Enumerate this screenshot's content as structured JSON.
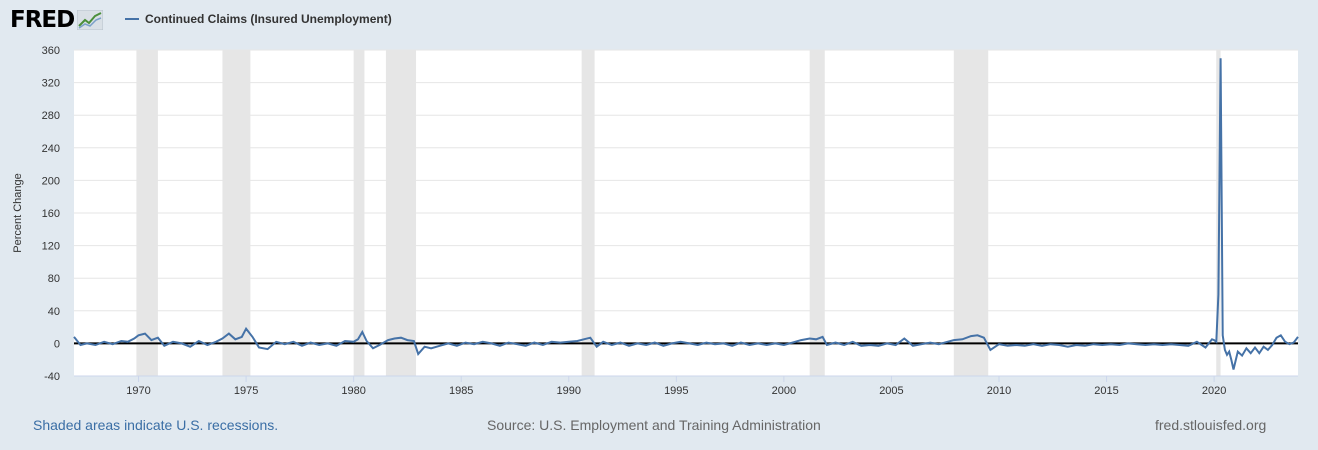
{
  "header": {
    "logo_text": "FRED",
    "logo_icon": "chart-line-icon",
    "legend_label": "Continued Claims (Insured Unemployment)"
  },
  "footer": {
    "recession_note": "Shaded areas indicate U.S. recessions.",
    "source": "Source: U.S. Employment and Training Administration",
    "site": "fred.stlouisfed.org"
  },
  "colors": {
    "series": "#4572a7",
    "recession": "#e6e6e6",
    "zero_line": "#000000",
    "background": "#e1e9f0"
  },
  "chart_data": {
    "type": "line",
    "ylabel": "Percent Change",
    "ylim": [
      -40,
      360
    ],
    "y_ticks": [
      "-40",
      "0",
      "40",
      "80",
      "120",
      "160",
      "200",
      "240",
      "280",
      "320",
      "360"
    ],
    "x_range": [
      1967.0,
      2023.9
    ],
    "x_ticks": [
      "1970",
      "1975",
      "1980",
      "1985",
      "1990",
      "1995",
      "2000",
      "2005",
      "2010",
      "2015",
      "2020"
    ],
    "grid": true,
    "legend_position": "top-left",
    "recessions": [
      [
        1969.9,
        1970.9
      ],
      [
        1973.9,
        1975.2
      ],
      [
        1980.0,
        1980.5
      ],
      [
        1981.5,
        1982.9
      ],
      [
        1990.6,
        1991.2
      ],
      [
        2001.2,
        2001.9
      ],
      [
        2007.9,
        2009.5
      ],
      [
        2020.1,
        2020.3
      ]
    ],
    "series": [
      {
        "values": [
          [
            1967.0,
            8
          ],
          [
            1967.3,
            -2
          ],
          [
            1967.6,
            0
          ],
          [
            1968.0,
            -2
          ],
          [
            1968.4,
            2
          ],
          [
            1968.8,
            -1
          ],
          [
            1969.2,
            3
          ],
          [
            1969.5,
            2
          ],
          [
            1969.8,
            6
          ],
          [
            1970.0,
            10
          ],
          [
            1970.3,
            12
          ],
          [
            1970.6,
            4
          ],
          [
            1970.9,
            7
          ],
          [
            1971.2,
            -3
          ],
          [
            1971.6,
            2
          ],
          [
            1972.0,
            0
          ],
          [
            1972.4,
            -4
          ],
          [
            1972.8,
            3
          ],
          [
            1973.2,
            -2
          ],
          [
            1973.6,
            2
          ],
          [
            1973.9,
            6
          ],
          [
            1974.2,
            12
          ],
          [
            1974.5,
            5
          ],
          [
            1974.8,
            8
          ],
          [
            1975.0,
            18
          ],
          [
            1975.3,
            8
          ],
          [
            1975.6,
            -5
          ],
          [
            1976.0,
            -7
          ],
          [
            1976.4,
            2
          ],
          [
            1976.8,
            -1
          ],
          [
            1977.2,
            2
          ],
          [
            1977.6,
            -3
          ],
          [
            1978.0,
            1
          ],
          [
            1978.4,
            -2
          ],
          [
            1978.8,
            0
          ],
          [
            1979.2,
            -3
          ],
          [
            1979.6,
            3
          ],
          [
            1980.0,
            2
          ],
          [
            1980.2,
            5
          ],
          [
            1980.4,
            14
          ],
          [
            1980.6,
            3
          ],
          [
            1980.9,
            -6
          ],
          [
            1981.2,
            -2
          ],
          [
            1981.6,
            4
          ],
          [
            1981.9,
            6
          ],
          [
            1982.2,
            7
          ],
          [
            1982.5,
            4
          ],
          [
            1982.8,
            3
          ],
          [
            1983.0,
            -13
          ],
          [
            1983.3,
            -4
          ],
          [
            1983.6,
            -6
          ],
          [
            1984.0,
            -3
          ],
          [
            1984.4,
            0
          ],
          [
            1984.8,
            -3
          ],
          [
            1985.2,
            1
          ],
          [
            1985.6,
            -1
          ],
          [
            1986.0,
            2
          ],
          [
            1986.4,
            0
          ],
          [
            1986.8,
            -3
          ],
          [
            1987.2,
            1
          ],
          [
            1987.6,
            -1
          ],
          [
            1988.0,
            -3
          ],
          [
            1988.4,
            1
          ],
          [
            1988.8,
            -2
          ],
          [
            1989.2,
            2
          ],
          [
            1989.6,
            1
          ],
          [
            1990.0,
            2
          ],
          [
            1990.4,
            3
          ],
          [
            1990.7,
            5
          ],
          [
            1991.0,
            7
          ],
          [
            1991.3,
            -4
          ],
          [
            1991.6,
            2
          ],
          [
            1992.0,
            -2
          ],
          [
            1992.4,
            1
          ],
          [
            1992.8,
            -3
          ],
          [
            1993.2,
            0
          ],
          [
            1993.6,
            -2
          ],
          [
            1994.0,
            1
          ],
          [
            1994.4,
            -3
          ],
          [
            1994.8,
            0
          ],
          [
            1995.2,
            2
          ],
          [
            1995.6,
            0
          ],
          [
            1996.0,
            -2
          ],
          [
            1996.4,
            1
          ],
          [
            1996.8,
            -1
          ],
          [
            1997.2,
            0
          ],
          [
            1997.6,
            -3
          ],
          [
            1998.0,
            1
          ],
          [
            1998.4,
            -2
          ],
          [
            1998.8,
            0
          ],
          [
            1999.2,
            -2
          ],
          [
            1999.6,
            0
          ],
          [
            2000.0,
            -2
          ],
          [
            2000.4,
            1
          ],
          [
            2000.8,
            4
          ],
          [
            2001.2,
            6
          ],
          [
            2001.5,
            5
          ],
          [
            2001.8,
            8
          ],
          [
            2002.0,
            -2
          ],
          [
            2002.4,
            1
          ],
          [
            2002.8,
            -2
          ],
          [
            2003.2,
            2
          ],
          [
            2003.6,
            -3
          ],
          [
            2004.0,
            -2
          ],
          [
            2004.4,
            -3
          ],
          [
            2004.8,
            0
          ],
          [
            2005.2,
            -2
          ],
          [
            2005.6,
            6
          ],
          [
            2006.0,
            -3
          ],
          [
            2006.4,
            -1
          ],
          [
            2006.8,
            1
          ],
          [
            2007.2,
            -1
          ],
          [
            2007.6,
            2
          ],
          [
            2007.9,
            4
          ],
          [
            2008.3,
            5
          ],
          [
            2008.7,
            9
          ],
          [
            2009.0,
            10
          ],
          [
            2009.3,
            7
          ],
          [
            2009.6,
            -8
          ],
          [
            2010.0,
            -1
          ],
          [
            2010.4,
            -3
          ],
          [
            2010.8,
            -2
          ],
          [
            2011.2,
            -3
          ],
          [
            2011.6,
            -1
          ],
          [
            2012.0,
            -3
          ],
          [
            2012.4,
            -1
          ],
          [
            2012.8,
            -2
          ],
          [
            2013.2,
            -4
          ],
          [
            2013.6,
            -2
          ],
          [
            2014.0,
            -3
          ],
          [
            2014.4,
            -1
          ],
          [
            2014.8,
            -2
          ],
          [
            2015.2,
            -1
          ],
          [
            2015.6,
            -2
          ],
          [
            2016.0,
            0
          ],
          [
            2016.4,
            -1
          ],
          [
            2016.8,
            -2
          ],
          [
            2017.2,
            -1
          ],
          [
            2017.6,
            -2
          ],
          [
            2018.0,
            -1
          ],
          [
            2018.4,
            -2
          ],
          [
            2018.8,
            -3
          ],
          [
            2019.2,
            2
          ],
          [
            2019.6,
            -5
          ],
          [
            2019.9,
            5
          ],
          [
            2020.0,
            4
          ],
          [
            2020.1,
            2
          ],
          [
            2020.2,
            60
          ],
          [
            2020.3,
            350
          ],
          [
            2020.4,
            10
          ],
          [
            2020.5,
            -8
          ],
          [
            2020.6,
            -14
          ],
          [
            2020.7,
            -10
          ],
          [
            2020.8,
            -20
          ],
          [
            2020.9,
            -32
          ],
          [
            2021.1,
            -10
          ],
          [
            2021.3,
            -15
          ],
          [
            2021.5,
            -6
          ],
          [
            2021.7,
            -12
          ],
          [
            2021.9,
            -5
          ],
          [
            2022.1,
            -12
          ],
          [
            2022.3,
            -4
          ],
          [
            2022.5,
            -8
          ],
          [
            2022.7,
            -2
          ],
          [
            2022.9,
            7
          ],
          [
            2023.1,
            10
          ],
          [
            2023.3,
            2
          ],
          [
            2023.5,
            -1
          ],
          [
            2023.7,
            1
          ],
          [
            2023.9,
            8
          ]
        ]
      }
    ]
  }
}
